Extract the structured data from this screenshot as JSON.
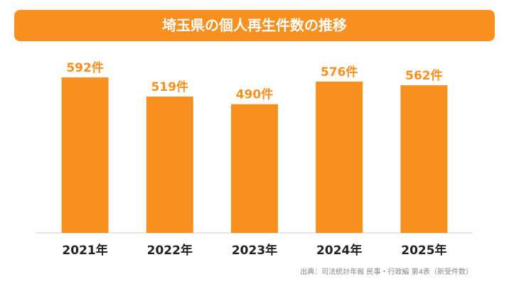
{
  "chart_data": {
    "type": "bar",
    "title": "埼玉県の個人再生件数の推移",
    "categories": [
      "2021年",
      "2022年",
      "2023年",
      "2024年",
      "2025年"
    ],
    "values": [
      592,
      519,
      490,
      576,
      562
    ],
    "value_labels": [
      "592件",
      "519件",
      "490件",
      "576件",
      "562件"
    ],
    "color": "#f7901e",
    "source": "出典：司法統計年報 民事・行政編 第4表（新受件数）"
  }
}
